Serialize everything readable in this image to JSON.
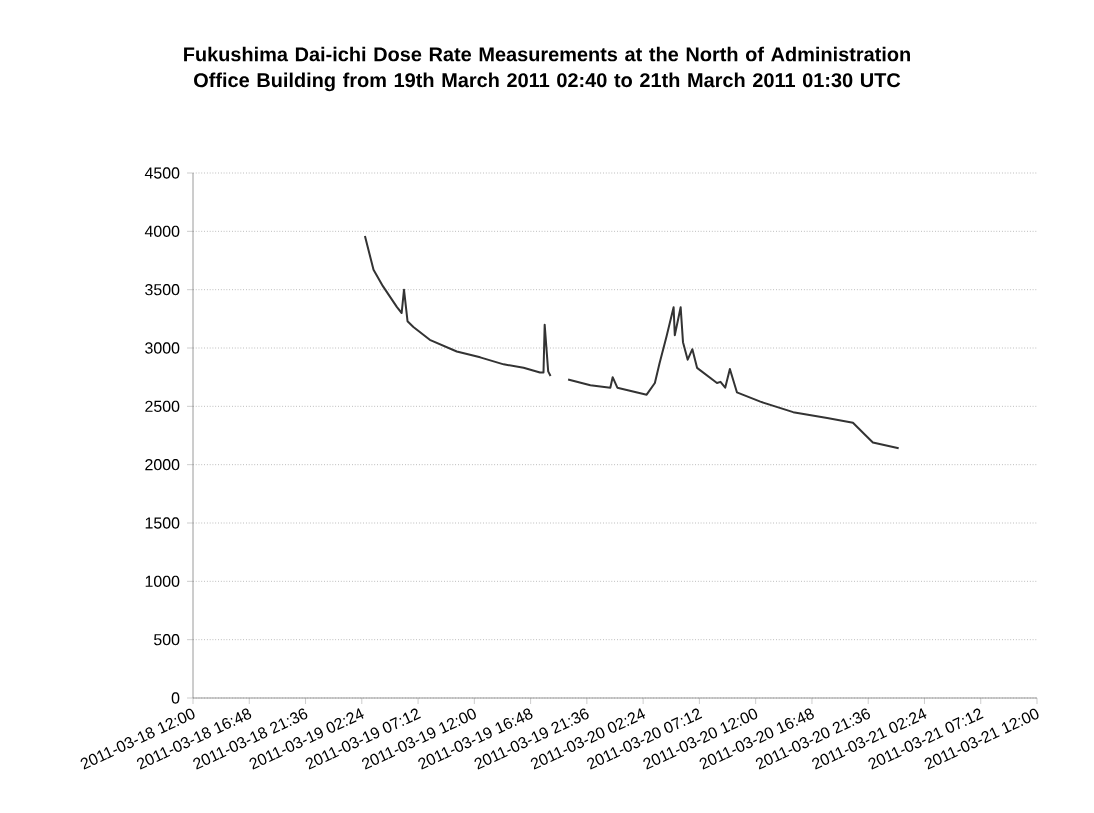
{
  "chart_data": {
    "type": "line",
    "title": "Fukushima Dai-ichi Dose Rate Measurements at the North of Administration Office Building from 19th March 2011 02:40 to 21th March 2011 01:30 UTC",
    "x": [
      "2011-03-19T02:40",
      "2011-03-19T03:24",
      "2011-03-19T04:12",
      "2011-03-19T05:24",
      "2011-03-19T05:48",
      "2011-03-19T06:00",
      "2011-03-19T06:18",
      "2011-03-19T06:48",
      "2011-03-19T08:12",
      "2011-03-19T10:30",
      "2011-03-19T12:30",
      "2011-03-19T14:30",
      "2011-03-19T16:12",
      "2011-03-19T17:36",
      "2011-03-19T17:54",
      "2011-03-19T18:00",
      "2011-03-19T18:18",
      "2011-03-19T18:30",
      "2011-03-19T19:30",
      "2011-03-19T20:00",
      "2011-03-19T21:54",
      "2011-03-19T23:36",
      "2011-03-19T23:48",
      "2011-03-20T00:12",
      "2011-03-20T02:42",
      "2011-03-20T03:24",
      "2011-03-20T03:48",
      "2011-03-20T04:24",
      "2011-03-20T05:00",
      "2011-03-20T05:06",
      "2011-03-20T05:36",
      "2011-03-20T05:48",
      "2011-03-20T06:12",
      "2011-03-20T06:36",
      "2011-03-20T07:00",
      "2011-03-20T08:42",
      "2011-03-20T09:00",
      "2011-03-20T09:24",
      "2011-03-20T09:48",
      "2011-03-20T10:24",
      "2011-03-20T12:24",
      "2011-03-20T15:12",
      "2011-03-20T18:06",
      "2011-03-20T20:18",
      "2011-03-20T21:30",
      "2011-03-20T22:00",
      "2011-03-21T00:12"
    ],
    "values": [
      3960,
      3670,
      3530,
      3350,
      3300,
      3500,
      3230,
      3180,
      3070,
      2970,
      2920,
      2860,
      2830,
      2790,
      2790,
      3200,
      2800,
      2760,
      null,
      2730,
      2680,
      2660,
      2750,
      2660,
      2600,
      2700,
      2870,
      3100,
      3350,
      3110,
      3350,
      3050,
      2900,
      2990,
      2830,
      2700,
      2710,
      2660,
      2820,
      2620,
      2540,
      2450,
      2400,
      2360,
      2240,
      2190,
      2140
    ],
    "color": "#333333",
    "xlim": [
      "2011-03-18T12:00",
      "2011-03-21T12:00"
    ],
    "xticks": [
      {
        "value": "2011-03-18T12:00",
        "label": "2011-03-18 12:00"
      },
      {
        "value": "2011-03-18T16:48",
        "label": "2011-03-18 16:48"
      },
      {
        "value": "2011-03-18T21:36",
        "label": "2011-03-18 21:36"
      },
      {
        "value": "2011-03-19T02:24",
        "label": "2011-03-19 02:24"
      },
      {
        "value": "2011-03-19T07:12",
        "label": "2011-03-19 07:12"
      },
      {
        "value": "2011-03-19T12:00",
        "label": "2011-03-19 12:00"
      },
      {
        "value": "2011-03-19T16:48",
        "label": "2011-03-19 16:48"
      },
      {
        "value": "2011-03-19T21:36",
        "label": "2011-03-19 21:36"
      },
      {
        "value": "2011-03-20T02:24",
        "label": "2011-03-20 02:24"
      },
      {
        "value": "2011-03-20T07:12",
        "label": "2011-03-20 07:12"
      },
      {
        "value": "2011-03-20T12:00",
        "label": "2011-03-20 12:00"
      },
      {
        "value": "2011-03-20T16:48",
        "label": "2011-03-20 16:48"
      },
      {
        "value": "2011-03-20T21:36",
        "label": "2011-03-20 21:36"
      },
      {
        "value": "2011-03-21T02:24",
        "label": "2011-03-21 02:24"
      },
      {
        "value": "2011-03-21T07:12",
        "label": "2011-03-21 07:12"
      },
      {
        "value": "2011-03-21T12:00",
        "label": "2011-03-21 12:00"
      }
    ],
    "ylim": [
      0,
      4500
    ],
    "yticks": [
      0,
      500,
      1000,
      1500,
      2000,
      2500,
      3000,
      3500,
      4000,
      4500
    ],
    "grid": "y",
    "marker": "none",
    "line_style": "solid"
  }
}
